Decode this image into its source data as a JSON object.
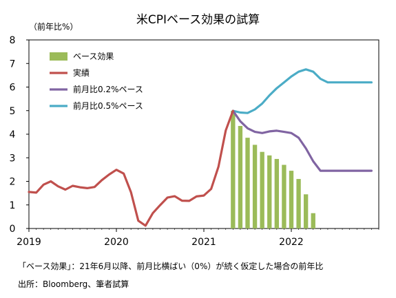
{
  "chart_data": {
    "type": "bar+line",
    "title": "米CPIベース効果の試算",
    "ylabel": "（前年比%）",
    "xlabel": "",
    "ylim": [
      0,
      8
    ],
    "yticks": [
      "0",
      "1",
      "2",
      "3",
      "4",
      "5",
      "6",
      "7",
      "8"
    ],
    "xticks": [
      "2019",
      "2020",
      "2021",
      "2022"
    ],
    "grid": false,
    "legend_position": "top-left",
    "colors": {
      "bars": "#9bbb59",
      "actual": "#c0504d",
      "p02": "#8064a2",
      "p05": "#4bacc6"
    },
    "bar_series": {
      "name": "ベース効果",
      "x": [
        "2021-05",
        "2021-06",
        "2021-07",
        "2021-08",
        "2021-09",
        "2021-10",
        "2021-11",
        "2021-12",
        "2022-01",
        "2022-02",
        "2022-03",
        "2022-04"
      ],
      "values": [
        4.99,
        4.35,
        3.85,
        3.55,
        3.25,
        3.1,
        2.95,
        2.7,
        2.45,
        2.1,
        1.45,
        0.65
      ]
    },
    "line_series": [
      {
        "name": "実績",
        "key": "actual",
        "x": [
          "2019-01",
          "2019-02",
          "2019-03",
          "2019-04",
          "2019-05",
          "2019-06",
          "2019-07",
          "2019-08",
          "2019-09",
          "2019-10",
          "2019-11",
          "2019-12",
          "2020-01",
          "2020-02",
          "2020-03",
          "2020-04",
          "2020-05",
          "2020-06",
          "2020-07",
          "2020-08",
          "2020-09",
          "2020-10",
          "2020-11",
          "2020-12",
          "2021-01",
          "2021-02",
          "2021-03",
          "2021-04",
          "2021-05"
        ],
        "values": [
          1.55,
          1.52,
          1.86,
          2.0,
          1.79,
          1.65,
          1.81,
          1.75,
          1.71,
          1.76,
          2.05,
          2.29,
          2.49,
          2.33,
          1.54,
          0.33,
          0.12,
          0.65,
          0.99,
          1.31,
          1.37,
          1.18,
          1.17,
          1.36,
          1.4,
          1.68,
          2.62,
          4.16,
          4.99
        ]
      },
      {
        "name": "前月比0.2%ペース",
        "key": "p02",
        "x": [
          "2021-05",
          "2021-06",
          "2021-07",
          "2021-08",
          "2021-09",
          "2021-10",
          "2021-11",
          "2021-12",
          "2022-01",
          "2022-02",
          "2022-03",
          "2022-04",
          "2022-05",
          "2022-06",
          "2022-07",
          "2022-08",
          "2022-09",
          "2022-10",
          "2022-11",
          "2022-12"
        ],
        "values": [
          4.99,
          4.55,
          4.25,
          4.1,
          4.05,
          4.12,
          4.15,
          4.1,
          4.05,
          3.85,
          3.4,
          2.85,
          2.45,
          2.45,
          2.45,
          2.45,
          2.45,
          2.45,
          2.45,
          2.45
        ]
      },
      {
        "name": "前月比0.5%ペース",
        "key": "p05",
        "x": [
          "2021-05",
          "2021-06",
          "2021-07",
          "2021-08",
          "2021-09",
          "2021-10",
          "2021-11",
          "2021-12",
          "2022-01",
          "2022-02",
          "2022-03",
          "2022-04",
          "2022-05",
          "2022-06",
          "2022-07",
          "2022-08",
          "2022-09",
          "2022-10",
          "2022-11",
          "2022-12"
        ],
        "values": [
          4.99,
          4.92,
          4.9,
          5.05,
          5.3,
          5.65,
          5.95,
          6.2,
          6.45,
          6.65,
          6.75,
          6.65,
          6.35,
          6.2,
          6.2,
          6.2,
          6.2,
          6.2,
          6.2,
          6.2
        ]
      }
    ],
    "note": "「ベース効果」：21年6月以降、前月比横ばい（0%）が続く仮定した場合の前年比",
    "source": "出所：Bloomberg、筆者試算"
  }
}
